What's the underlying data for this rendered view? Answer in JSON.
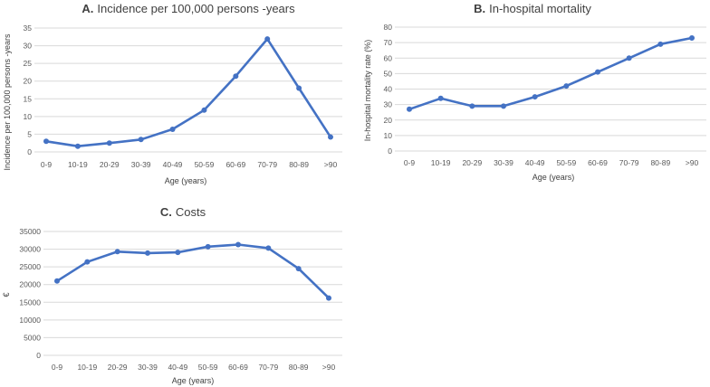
{
  "chart_data": [
    {
      "id": "A",
      "type": "line",
      "title_prefix": "A.",
      "title": "Incidence per 100,000 persons -years",
      "xlabel": "Age (years)",
      "ylabel": "Incidence per 100,000 persons -years",
      "categories": [
        "0-9",
        "10-19",
        "20-29",
        "30-39",
        "40-49",
        "50-59",
        "60-69",
        "70-79",
        "80-89",
        ">90"
      ],
      "values": [
        3.0,
        1.6,
        2.5,
        3.5,
        6.4,
        11.8,
        21.4,
        31.9,
        18.0,
        4.2
      ],
      "ylim": [
        0,
        35
      ],
      "yticks": [
        0,
        5,
        10,
        15,
        20,
        25,
        30,
        35
      ],
      "ytick_labels": [
        "0",
        "5",
        "10",
        "15",
        "20",
        "25",
        "30",
        "35"
      ],
      "grid": true
    },
    {
      "id": "B",
      "type": "line",
      "title_prefix": "B.",
      "title": "In-hospital mortality",
      "xlabel": "Age (years)",
      "ylabel": "In-hospital mortality rate (%)",
      "categories": [
        "0-9",
        "10-19",
        "20-29",
        "30-39",
        "40-49",
        "50-59",
        "60-69",
        "70-79",
        "80-89",
        ">90"
      ],
      "values": [
        27,
        34,
        29,
        29,
        35,
        42,
        51,
        60,
        69,
        73
      ],
      "ylim": [
        0,
        80
      ],
      "yticks": [
        0,
        10,
        20,
        30,
        40,
        50,
        60,
        70,
        80
      ],
      "ytick_labels": [
        "0",
        "10",
        "20",
        "30",
        "40",
        "50",
        "60",
        "70",
        "80"
      ],
      "grid": true
    },
    {
      "id": "C",
      "type": "line",
      "title_prefix": "C.",
      "title": "Costs",
      "xlabel": "Age (years)",
      "ylabel": "€",
      "categories": [
        "0-9",
        "10-19",
        "20-29",
        "30-39",
        "40-49",
        "50-59",
        "60-69",
        "70-79",
        "80-89",
        ">90"
      ],
      "values": [
        21000,
        26400,
        29300,
        28900,
        29100,
        30700,
        31300,
        30300,
        24500,
        16200
      ],
      "ylim": [
        0,
        35000
      ],
      "yticks": [
        0,
        5000,
        10000,
        15000,
        20000,
        25000,
        30000,
        35000
      ],
      "ytick_labels": [
        "0",
        "5000",
        "10000",
        "15000",
        "20000",
        "25000",
        "30000",
        "35000"
      ],
      "grid": true
    }
  ],
  "style": {
    "line_color": "#4472c4",
    "grid_color": "#d9d9d9"
  }
}
